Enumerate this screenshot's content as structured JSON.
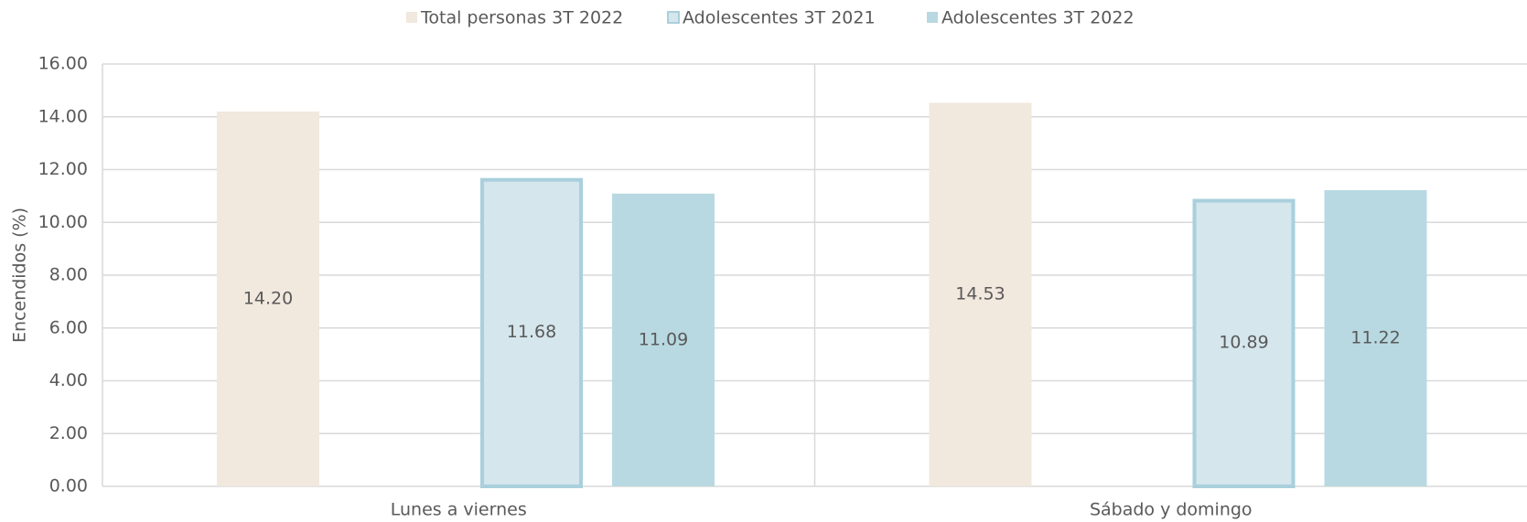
{
  "chart_data": {
    "type": "bar",
    "y_label": "Encendidos (%)",
    "categories": [
      "Lunes a viernes",
      "Sábado y domingo"
    ],
    "series": [
      {
        "name": "Total personas 3T 2022",
        "color": "#f1e8de",
        "values": [
          14.2,
          14.53
        ],
        "value_labels": [
          "14.20",
          "14.53"
        ]
      },
      {
        "name": "Adolescentes 3T 2021",
        "color": "#d5e6ed",
        "values": [
          11.68,
          10.89
        ],
        "value_labels": [
          "11.68",
          "10.89"
        ]
      },
      {
        "name": "Adolescentes 3T 2022",
        "color": "#b8d9e1",
        "values": [
          11.09,
          11.22
        ],
        "value_labels": [
          "11.09",
          "11.22"
        ]
      }
    ],
    "ylim": [
      0,
      16
    ],
    "yticks": [
      {
        "value": 0,
        "label": "0.00"
      },
      {
        "value": 2,
        "label": "2.00"
      },
      {
        "value": 4,
        "label": "4.00"
      },
      {
        "value": 6,
        "label": "6.00"
      },
      {
        "value": 8,
        "label": "8.00"
      },
      {
        "value": 10,
        "label": "10.00"
      },
      {
        "value": 12,
        "label": "12.00"
      },
      {
        "value": 14,
        "label": "14.00"
      },
      {
        "value": 16,
        "label": "16.00"
      }
    ],
    "grid": true,
    "legend": "top"
  }
}
